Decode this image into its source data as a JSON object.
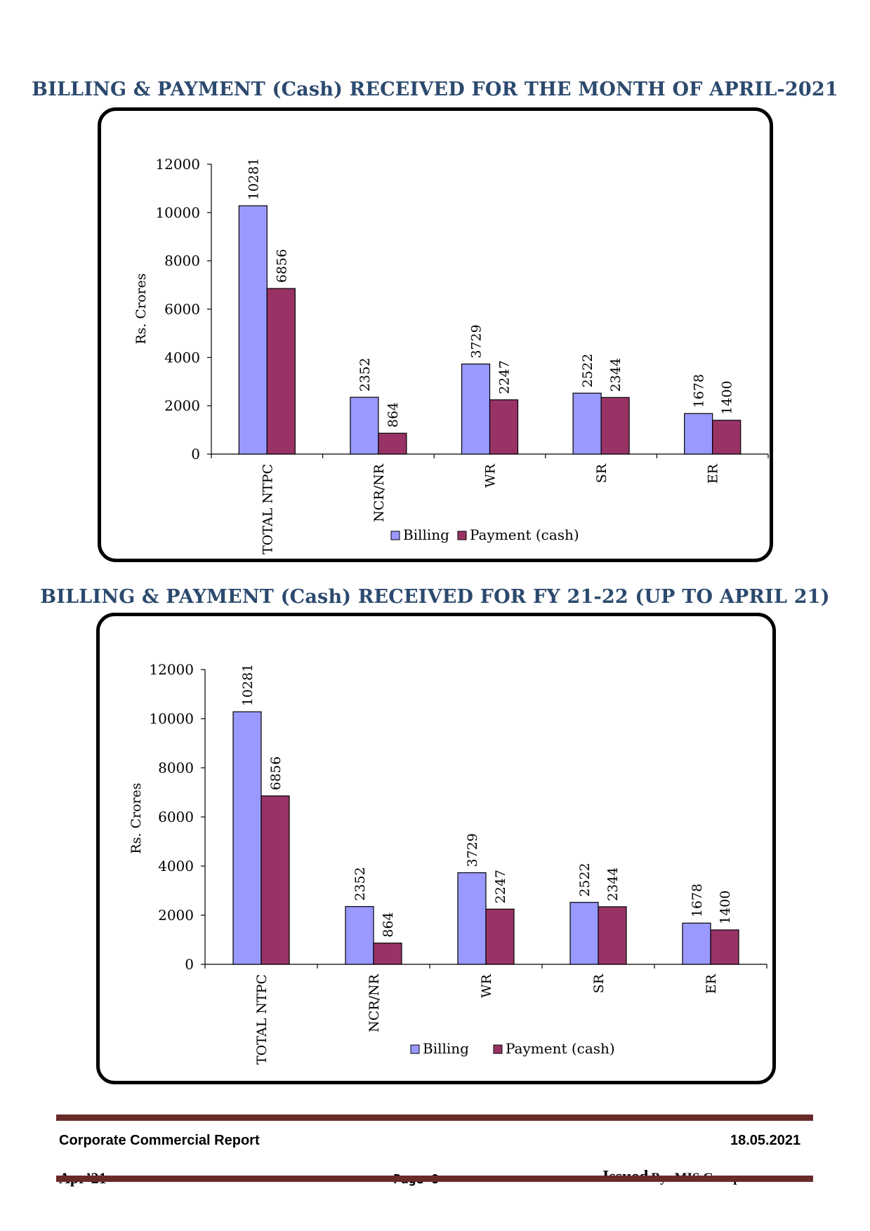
{
  "chart_data": [
    {
      "type": "bar",
      "title": "BILLING & PAYMENT (Cash) RECEIVED FOR THE MONTH OF APRIL-2021",
      "ylabel": "Rs. Crores",
      "xlabel": "",
      "ylim": [
        0,
        12000
      ],
      "yticks": [
        0,
        2000,
        4000,
        6000,
        8000,
        10000,
        12000
      ],
      "categories": [
        "TOTAL NTPC",
        "NCR/NR",
        "WR",
        "SR",
        "ER"
      ],
      "series": [
        {
          "name": "Billing",
          "color": "#9999ff",
          "values": [
            10281,
            2352,
            3729,
            2522,
            1678
          ]
        },
        {
          "name": "Payment (cash)",
          "color": "#993366",
          "values": [
            6856,
            864,
            2247,
            2344,
            1400
          ]
        }
      ],
      "legend": "bottom-center",
      "grid": false
    },
    {
      "type": "bar",
      "title": "BILLING & PAYMENT (Cash) RECEIVED FOR FY 21-22 (UP TO APRIL 21)",
      "ylabel": "Rs. Crores",
      "xlabel": "",
      "ylim": [
        0,
        12000
      ],
      "yticks": [
        0,
        2000,
        4000,
        6000,
        8000,
        10000,
        12000
      ],
      "categories": [
        "TOTAL NTPC",
        "NCR/NR",
        "WR",
        "SR",
        "ER"
      ],
      "series": [
        {
          "name": "Billing",
          "color": "#9999ff",
          "values": [
            10281,
            2352,
            3729,
            2522,
            1678
          ]
        },
        {
          "name": "Payment (cash)",
          "color": "#993366",
          "values": [
            6856,
            864,
            2247,
            2344,
            1400
          ]
        }
      ],
      "legend": "bottom-center",
      "grid": false
    }
  ],
  "footer": {
    "report_title": "Corporate Commercial Report",
    "date": "18.05.2021",
    "month": "Apr’21",
    "page": "Page 8",
    "issued_label": "Issued",
    "issued_by": "By:  MIS Group"
  }
}
